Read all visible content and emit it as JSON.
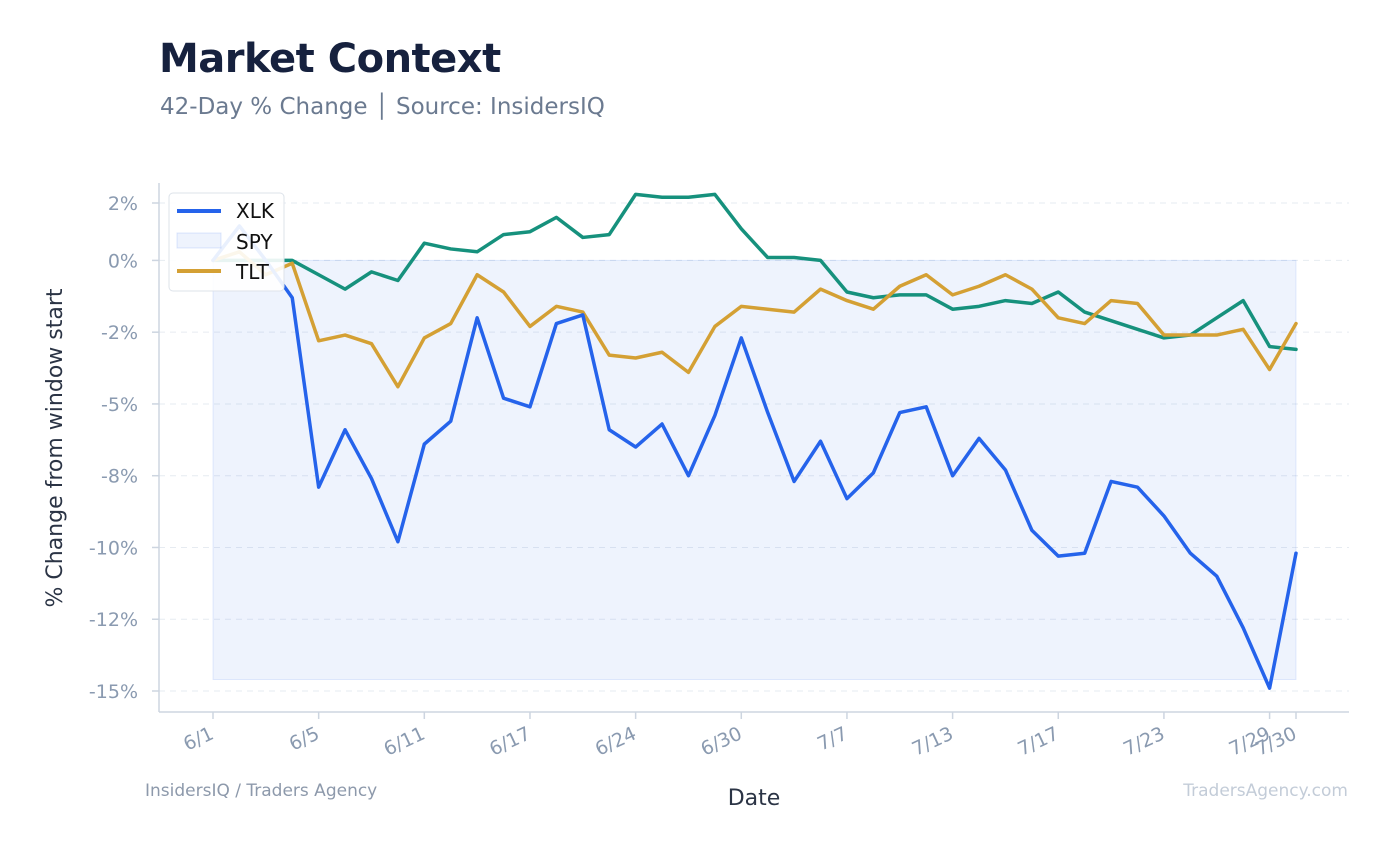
{
  "header": {
    "title": "Market Context",
    "subtitle": "42-Day % Change │ Source: InsidersIQ"
  },
  "footer": {
    "left": "InsidersIQ / Traders Agency",
    "right": "TradersAgency.com"
  },
  "chart_data": {
    "type": "line",
    "xlabel": "Date",
    "ylabel": "% Change from window start",
    "x": [
      1,
      2,
      3,
      4,
      5,
      6,
      7,
      8,
      9,
      10,
      11,
      12,
      13,
      14,
      15,
      16,
      17,
      18,
      19,
      20,
      21,
      22,
      23,
      24,
      25,
      26,
      27,
      28,
      29,
      30,
      31,
      32,
      33,
      34,
      35,
      36,
      37,
      38,
      39,
      40,
      41,
      42
    ],
    "x_ticks": [
      {
        "x": 1,
        "label": "6/1"
      },
      {
        "x": 5,
        "label": "6/5"
      },
      {
        "x": 9,
        "label": "6/11"
      },
      {
        "x": 13,
        "label": "6/17"
      },
      {
        "x": 17,
        "label": "6/24"
      },
      {
        "x": 21,
        "label": "6/30"
      },
      {
        "x": 25,
        "label": "7/7"
      },
      {
        "x": 29,
        "label": "7/13"
      },
      {
        "x": 33,
        "label": "7/17"
      },
      {
        "x": 37,
        "label": "7/23"
      },
      {
        "x": 41,
        "label": "7/29"
      },
      {
        "x": 42,
        "label": "7/30"
      }
    ],
    "y_ticks": [
      {
        "value": 2,
        "label": "2%"
      },
      {
        "value": 0,
        "label": "0%"
      },
      {
        "value": -2.5,
        "label": "-2%"
      },
      {
        "value": -5,
        "label": "-5%"
      },
      {
        "value": -7.5,
        "label": "-8%"
      },
      {
        "value": -10,
        "label": "-10%"
      },
      {
        "value": -12.5,
        "label": "-12%"
      },
      {
        "value": -15,
        "label": "-15%"
      }
    ],
    "ylim": [
      -15.8,
      3.2
    ],
    "grid": true,
    "legend": "top-left",
    "series": [
      {
        "name": "XLK",
        "color": "#2563eb",
        "style": "line",
        "values": [
          0.0,
          1.2,
          0.0,
          -1.3,
          -7.9,
          -5.9,
          -7.6,
          -9.8,
          -6.4,
          -5.6,
          -2.0,
          -4.8,
          -5.1,
          -2.2,
          -1.9,
          -5.9,
          -6.5,
          -5.7,
          -7.5,
          -5.4,
          -2.7,
          -5.3,
          -7.7,
          -6.3,
          -8.3,
          -7.4,
          -5.3,
          -5.1,
          -7.5,
          -6.2,
          -7.3,
          -9.4,
          -10.3,
          -10.2,
          -7.7,
          -7.9,
          -8.9,
          -10.2,
          -11.0,
          -12.8,
          -14.9,
          -10.2
        ]
      },
      {
        "name": "SPY",
        "color": "#2563eb",
        "style": "area",
        "values": [
          0.0,
          0.0,
          0.0,
          0.0,
          0.0,
          0.0,
          0.0,
          0.0,
          0.0,
          0.0,
          0.0,
          0.0,
          0.0,
          0.0,
          0.0,
          0.0,
          0.0,
          0.0,
          0.0,
          0.0,
          0.0,
          0.0,
          0.0,
          0.0,
          0.0,
          0.0,
          0.0,
          0.0,
          0.0,
          0.0,
          0.0,
          0.0,
          0.0,
          0.0,
          0.0,
          0.0,
          0.0,
          0.0,
          0.0,
          0.0,
          0.0,
          0.0
        ],
        "fill_floor": -14.6
      },
      {
        "name": "TLT",
        "color": "#d4a034",
        "style": "line",
        "values": [
          0.0,
          0.3,
          -0.5,
          -0.1,
          -2.8,
          -2.6,
          -2.9,
          -4.4,
          -2.7,
          -2.2,
          -0.5,
          -1.1,
          -2.3,
          -1.6,
          -1.8,
          -3.3,
          -3.4,
          -3.2,
          -3.9,
          -2.3,
          -1.6,
          -1.7,
          -1.8,
          -1.0,
          -1.4,
          -1.7,
          -0.9,
          -0.5,
          -1.2,
          -0.9,
          -0.5,
          -1.0,
          -2.0,
          -2.2,
          -1.4,
          -1.5,
          -2.6,
          -2.6,
          -2.6,
          -2.4,
          -3.8,
          -2.2
        ]
      },
      {
        "name": "",
        "color": "#16917d",
        "style": "line",
        "values": [
          0.0,
          0.0,
          0.0,
          0.0,
          -0.5,
          -1.0,
          -0.4,
          -0.7,
          0.6,
          0.4,
          0.3,
          0.9,
          1.0,
          1.5,
          0.8,
          0.9,
          2.3,
          2.2,
          2.2,
          2.3,
          1.1,
          0.1,
          0.1,
          0.0,
          -1.1,
          -1.3,
          -1.2,
          -1.2,
          -1.7,
          -1.6,
          -1.4,
          -1.5,
          -1.1,
          -1.8,
          -2.1,
          -2.4,
          -2.7,
          -2.6,
          -2.0,
          -1.4,
          -3.0,
          -3.1
        ]
      }
    ]
  }
}
